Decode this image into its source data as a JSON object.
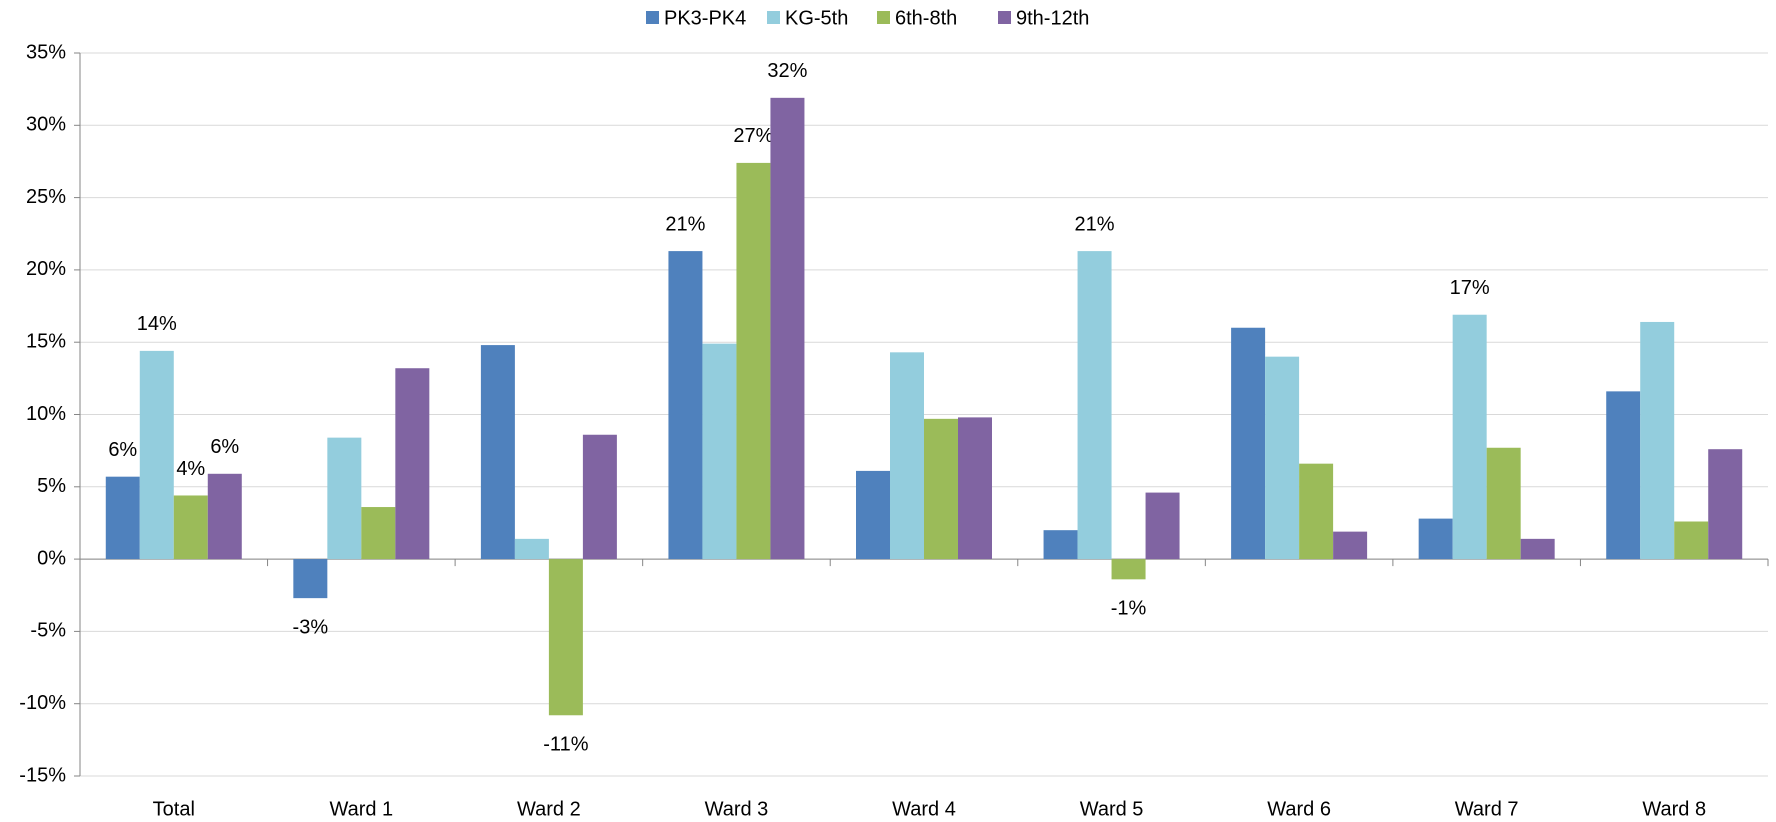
{
  "chart_data": {
    "type": "bar",
    "categories": [
      "Total",
      "Ward 1",
      "Ward 2",
      "Ward 3",
      "Ward 4",
      "Ward 5",
      "Ward 6",
      "Ward 7",
      "Ward 8"
    ],
    "series": [
      {
        "name": "PK3-PK4",
        "color": "#4f81bd",
        "values": [
          5.7,
          -2.7,
          14.8,
          21.3,
          6.1,
          2.0,
          16.0,
          2.8,
          11.6
        ],
        "value_labels": [
          "6%",
          "-3%",
          null,
          "21%",
          null,
          null,
          null,
          null,
          null
        ]
      },
      {
        "name": "KG-5th",
        "color": "#93cddd",
        "values": [
          14.4,
          8.4,
          1.4,
          14.9,
          14.3,
          21.3,
          14.0,
          16.9,
          16.4
        ],
        "value_labels": [
          "14%",
          null,
          null,
          null,
          null,
          "21%",
          null,
          "17%",
          null
        ]
      },
      {
        "name": "6th-8th",
        "color": "#9bbb59",
        "values": [
          4.4,
          3.6,
          -10.8,
          27.4,
          9.7,
          -1.4,
          6.6,
          7.7,
          2.6
        ],
        "value_labels": [
          "4%",
          null,
          "-11%",
          "27%",
          null,
          "-1%",
          null,
          null,
          null
        ]
      },
      {
        "name": "9th-12th",
        "color": "#8064a2",
        "values": [
          5.9,
          13.2,
          8.6,
          31.9,
          9.8,
          4.6,
          1.9,
          1.4,
          7.6
        ],
        "value_labels": [
          "6%",
          null,
          null,
          "32%",
          null,
          null,
          null,
          null,
          null
        ]
      }
    ],
    "ylim": [
      -15,
      35
    ],
    "yticks": [
      {
        "value": -15,
        "label": "-15%"
      },
      {
        "value": -10,
        "label": "-10%"
      },
      {
        "value": -5,
        "label": "-5%"
      },
      {
        "value": 0,
        "label": "0%"
      },
      {
        "value": 5,
        "label": "5%"
      },
      {
        "value": 10,
        "label": "10%"
      },
      {
        "value": 15,
        "label": "15%"
      },
      {
        "value": 20,
        "label": "20%"
      },
      {
        "value": 25,
        "label": "25%"
      },
      {
        "value": 30,
        "label": "30%"
      },
      {
        "value": 35,
        "label": "35%"
      }
    ],
    "grid": true,
    "legend": "top"
  }
}
